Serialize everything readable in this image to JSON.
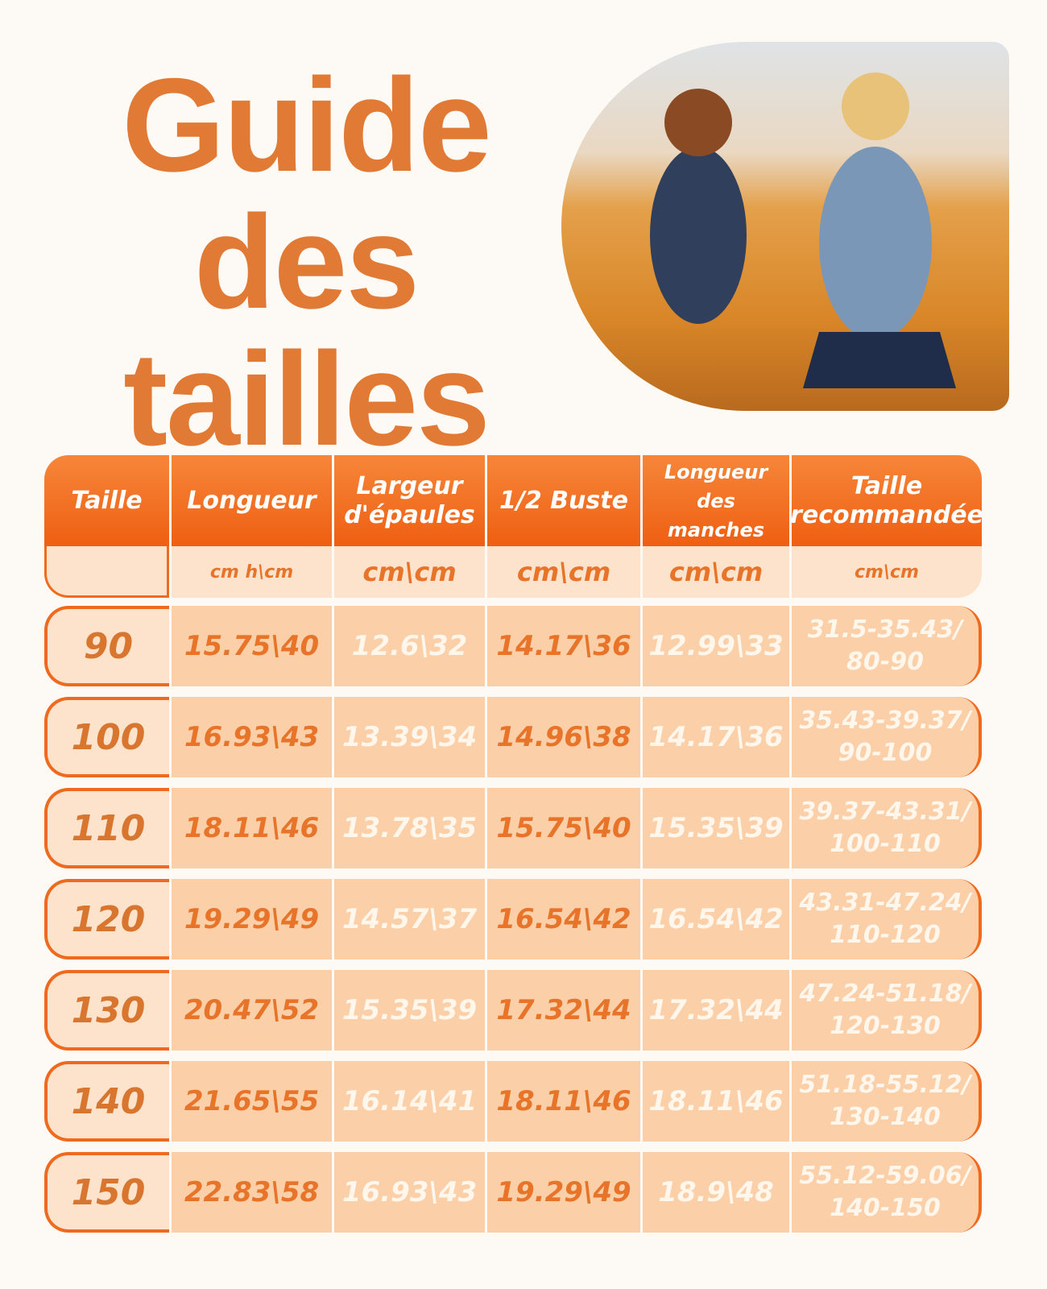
{
  "header": {
    "title": "Guide des tailles"
  },
  "table": {
    "columns": [
      "Taille",
      "Longueur",
      "Largeur d'épaules",
      "1/2 Buste",
      "Longueur des manches",
      "Taille recommandée"
    ],
    "units": [
      "cm h\\cm",
      "cm\\cm",
      "cm\\cm",
      "cm\\cm",
      "cm\\cm"
    ],
    "rows": [
      [
        "90",
        "15.75\\40",
        "12.6\\32",
        "14.17\\36",
        "12.99\\33",
        [
          "31.5-35.43/",
          "80-90"
        ]
      ],
      [
        "100",
        "16.93\\43",
        "13.39\\34",
        "14.96\\38",
        "14.17\\36",
        [
          "35.43-39.37/",
          "90-100"
        ]
      ],
      [
        "110",
        "18.11\\46",
        "13.78\\35",
        "15.75\\40",
        "15.35\\39",
        [
          "39.37-43.31/",
          "100-110"
        ]
      ],
      [
        "120",
        "19.29\\49",
        "14.57\\37",
        "16.54\\42",
        "16.54\\42",
        [
          "43.31-47.24/",
          "110-120"
        ]
      ],
      [
        "130",
        "20.47\\52",
        "15.35\\39",
        "17.32\\44",
        "17.32\\44",
        [
          "47.24-51.18/",
          "120-130"
        ]
      ],
      [
        "140",
        "21.65\\55",
        "16.14\\41",
        "18.11\\46",
        "18.11\\46",
        [
          "51.18-55.12/",
          "130-140"
        ]
      ],
      [
        "150",
        "22.83\\58",
        "16.93\\43",
        "19.29\\49",
        "18.9\\48",
        [
          "55.12-59.06/",
          "140-150"
        ]
      ]
    ]
  }
}
